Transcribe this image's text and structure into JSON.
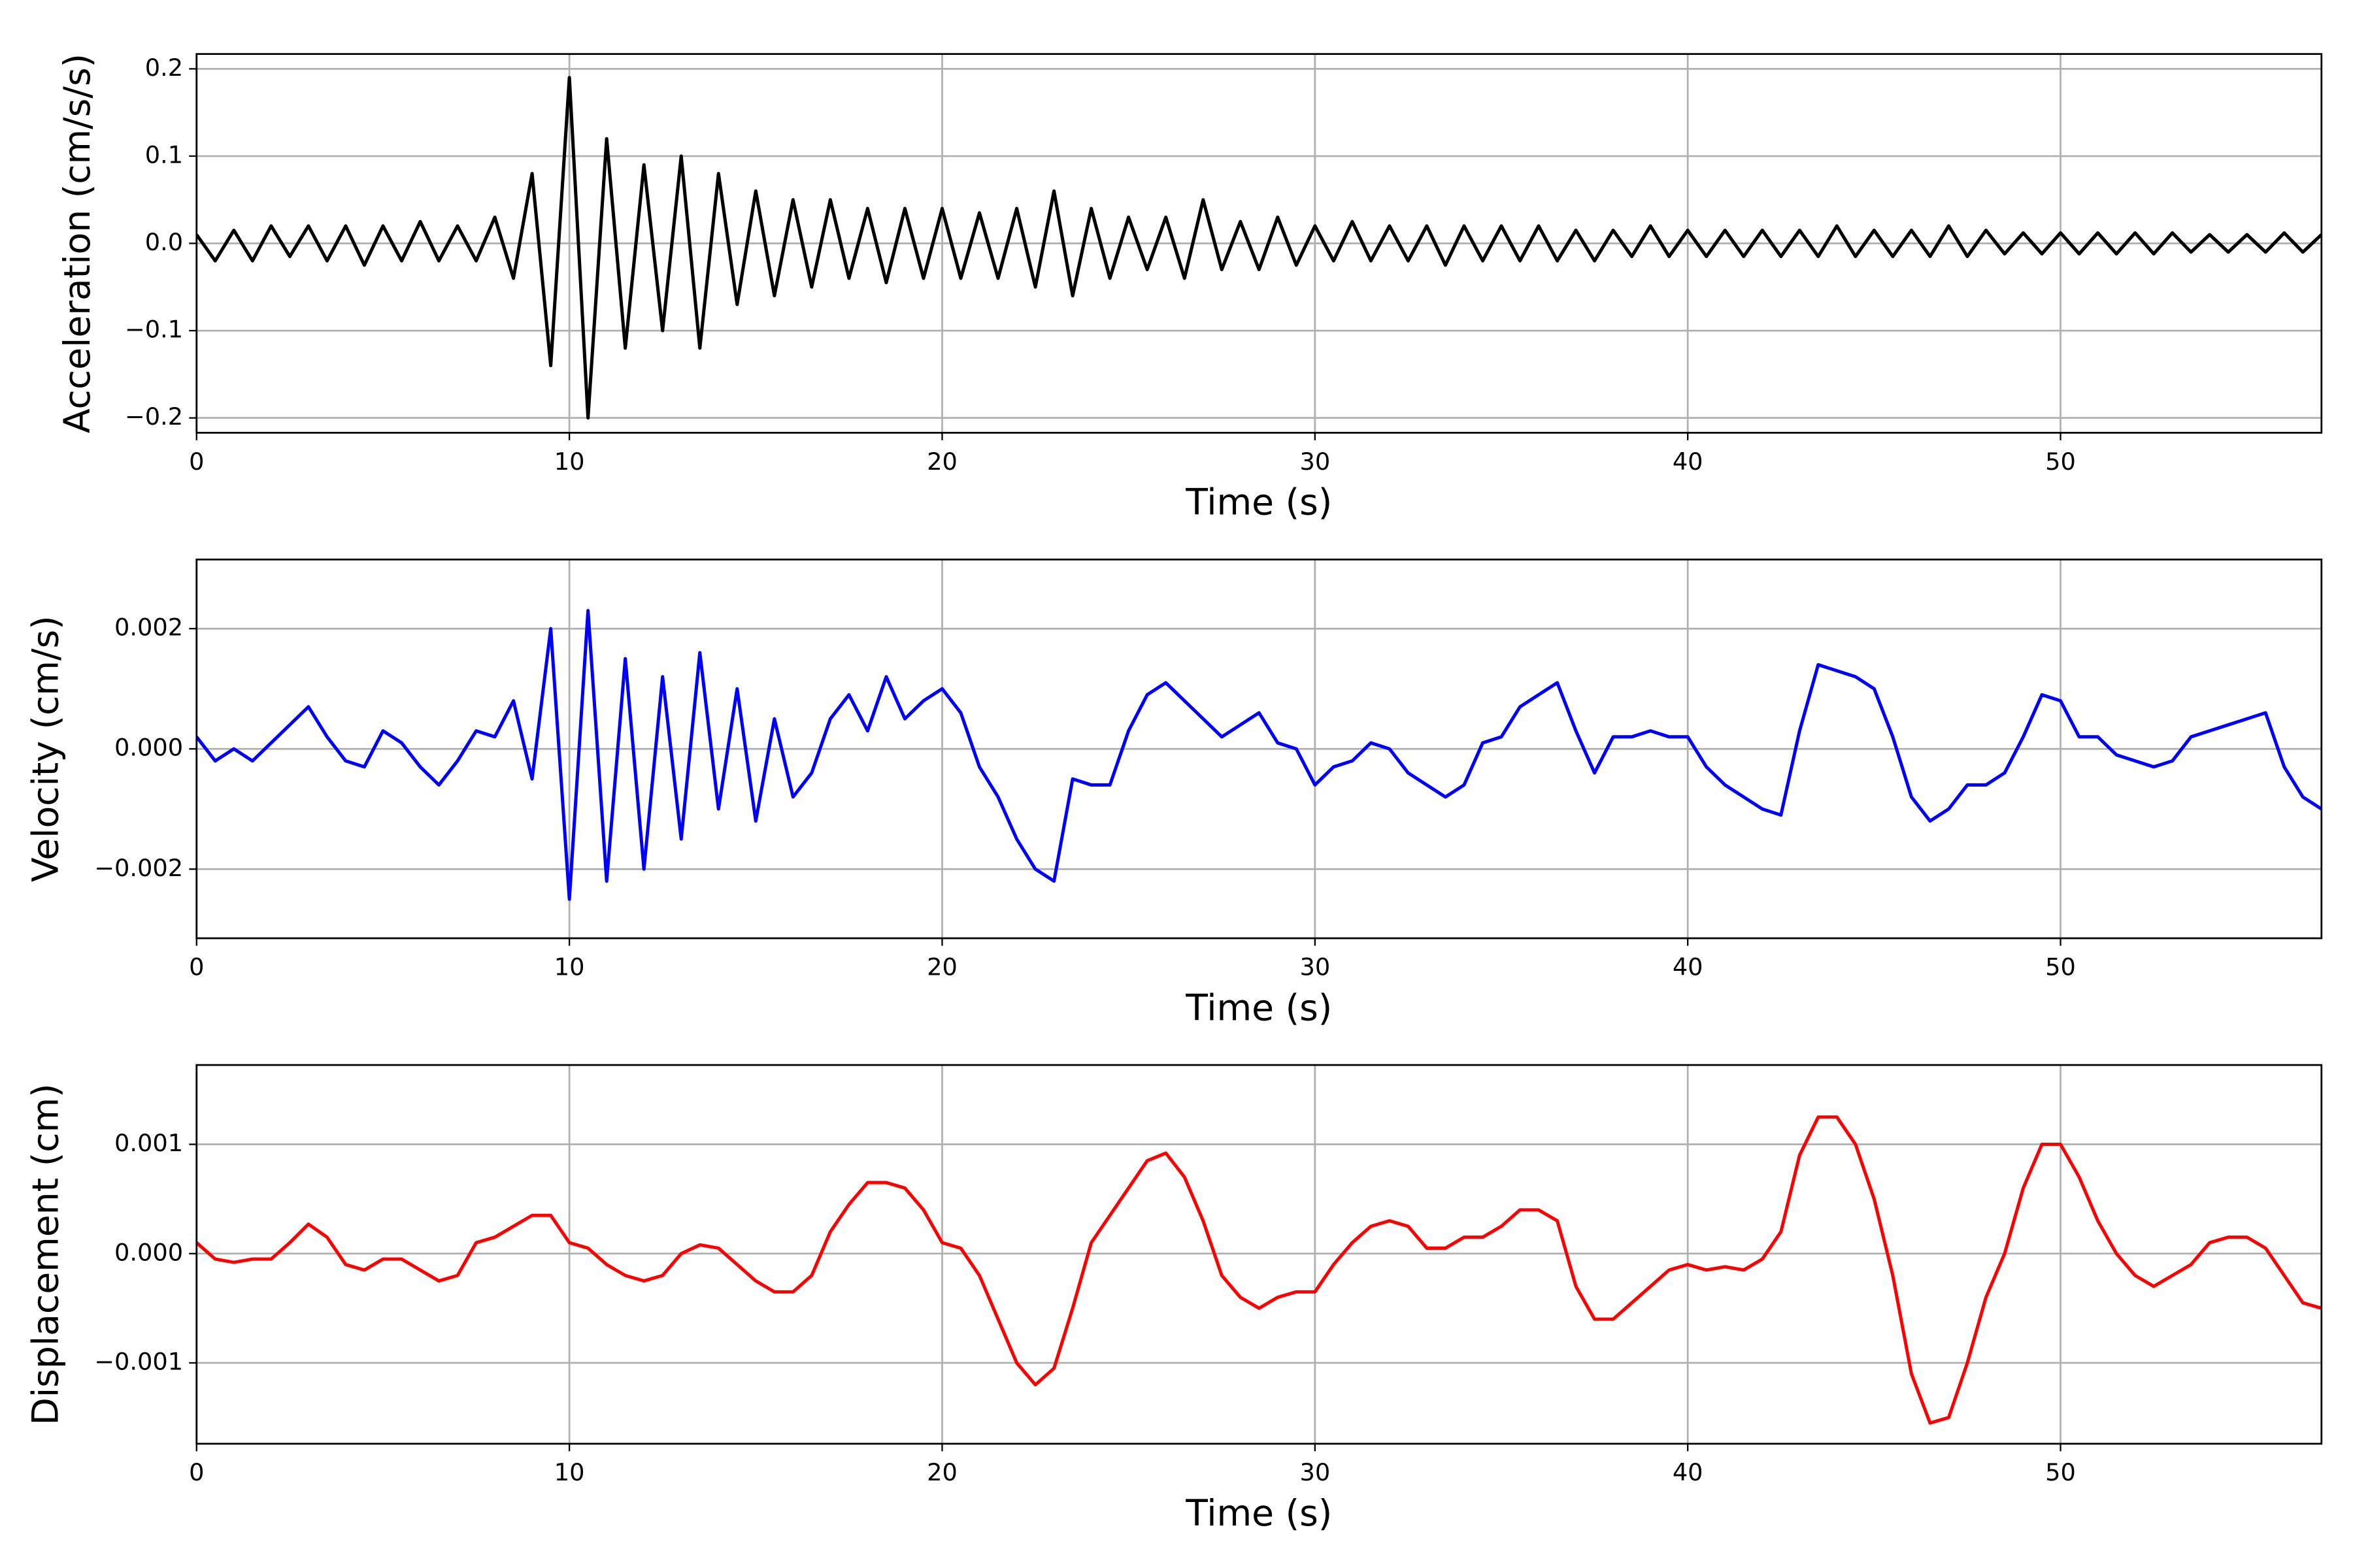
{
  "chart_data": [
    {
      "type": "line",
      "ylabel": "Acceleration (cm/s/s)",
      "xlabel": "Time (s)",
      "color": "#000000",
      "grid": true,
      "xlim": [
        0,
        57
      ],
      "xticks": [
        0,
        10,
        20,
        30,
        40,
        50
      ],
      "ylim": [
        -0.217,
        0.217
      ],
      "yticks": [
        {
          "value": -0.2,
          "label": "−0.2"
        },
        {
          "value": -0.1,
          "label": "−0.1"
        },
        {
          "value": 0,
          "label": "0.0"
        },
        0.1,
        0.2
      ],
      "x": [
        0,
        0.5,
        1,
        1.5,
        2,
        2.5,
        3,
        3.5,
        4,
        4.5,
        5,
        5.5,
        6,
        6.5,
        7,
        7.5,
        8,
        8.5,
        9,
        9.5,
        10,
        10.5,
        11,
        11.5,
        12,
        12.5,
        13,
        13.5,
        14,
        14.5,
        15,
        15.5,
        16,
        16.5,
        17,
        17.5,
        18,
        18.5,
        19,
        19.5,
        20,
        20.5,
        21,
        21.5,
        22,
        22.5,
        23,
        23.5,
        24,
        24.5,
        25,
        25.5,
        26,
        26.5,
        27,
        27.5,
        28,
        28.5,
        29,
        29.5,
        30,
        30.5,
        31,
        31.5,
        32,
        32.5,
        33,
        33.5,
        34,
        34.5,
        35,
        35.5,
        36,
        36.5,
        37,
        37.5,
        38,
        38.5,
        39,
        39.5,
        40,
        40.5,
        41,
        41.5,
        42,
        42.5,
        43,
        43.5,
        44,
        44.5,
        45,
        45.5,
        46,
        46.5,
        47,
        47.5,
        48,
        48.5,
        49,
        49.5,
        50,
        50.5,
        51,
        51.5,
        52,
        52.5,
        53,
        53.5,
        54,
        54.5,
        55,
        55.5,
        56,
        56.5,
        57
      ],
      "values": [
        0.01,
        -0.02,
        0.015,
        -0.02,
        0.02,
        -0.015,
        0.02,
        -0.02,
        0.02,
        -0.025,
        0.02,
        -0.02,
        0.025,
        -0.02,
        0.02,
        -0.02,
        0.03,
        -0.04,
        0.08,
        -0.14,
        0.19,
        -0.2,
        0.12,
        -0.12,
        0.09,
        -0.1,
        0.1,
        -0.12,
        0.08,
        -0.07,
        0.06,
        -0.06,
        0.05,
        -0.05,
        0.05,
        -0.04,
        0.04,
        -0.045,
        0.04,
        -0.04,
        0.04,
        -0.04,
        0.035,
        -0.04,
        0.04,
        -0.05,
        0.06,
        -0.06,
        0.04,
        -0.04,
        0.03,
        -0.03,
        0.03,
        -0.04,
        0.05,
        -0.03,
        0.025,
        -0.03,
        0.03,
        -0.025,
        0.02,
        -0.02,
        0.025,
        -0.02,
        0.02,
        -0.02,
        0.02,
        -0.025,
        0.02,
        -0.02,
        0.02,
        -0.02,
        0.02,
        -0.02,
        0.015,
        -0.02,
        0.015,
        -0.015,
        0.02,
        -0.015,
        0.015,
        -0.015,
        0.015,
        -0.015,
        0.015,
        -0.015,
        0.015,
        -0.015,
        0.02,
        -0.015,
        0.015,
        -0.015,
        0.015,
        -0.015,
        0.02,
        -0.015,
        0.015,
        -0.012,
        0.012,
        -0.012,
        0.012,
        -0.012,
        0.012,
        -0.012,
        0.012,
        -0.012,
        0.012,
        -0.01,
        0.01,
        -0.01,
        0.01,
        -0.01,
        0.012,
        -0.01,
        0.01
      ]
    },
    {
      "type": "line",
      "ylabel": "Velocity (cm/s)",
      "xlabel": "Time (s)",
      "color": "#0000ff",
      "grid": true,
      "xlim": [
        0,
        57
      ],
      "xticks": [
        0,
        10,
        20,
        30,
        40,
        50
      ],
      "ylim": [
        -0.00315,
        0.00315
      ],
      "yticks": [
        {
          "value": -0.002,
          "label": "−0.002"
        },
        {
          "value": 0,
          "label": "0.000"
        },
        0.002
      ],
      "x": [
        0,
        0.5,
        1,
        1.5,
        2,
        2.5,
        3,
        3.5,
        4,
        4.5,
        5,
        5.5,
        6,
        6.5,
        7,
        7.5,
        8,
        8.5,
        9,
        9.5,
        10,
        10.5,
        11,
        11.5,
        12,
        12.5,
        13,
        13.5,
        14,
        14.5,
        15,
        15.5,
        16,
        16.5,
        17,
        17.5,
        18,
        18.5,
        19,
        19.5,
        20,
        20.5,
        21,
        21.5,
        22,
        22.5,
        23,
        23.5,
        24,
        24.5,
        25,
        25.5,
        26,
        26.5,
        27,
        27.5,
        28,
        28.5,
        29,
        29.5,
        30,
        30.5,
        31,
        31.5,
        32,
        32.5,
        33,
        33.5,
        34,
        34.5,
        35,
        35.5,
        36,
        36.5,
        37,
        37.5,
        38,
        38.5,
        39,
        39.5,
        40,
        40.5,
        41,
        41.5,
        42,
        42.5,
        43,
        43.5,
        44,
        44.5,
        45,
        45.5,
        46,
        46.5,
        47,
        47.5,
        48,
        48.5,
        49,
        49.5,
        50,
        50.5,
        51,
        51.5,
        52,
        52.5,
        53,
        53.5,
        54,
        54.5,
        55,
        55.5,
        56,
        56.5,
        57
      ],
      "values": [
        0.0002,
        -0.0002,
        0,
        -0.0002,
        0.0001,
        0.0004,
        0.0007,
        0.0002,
        -0.0002,
        -0.0003,
        0.0003,
        0.0001,
        -0.0003,
        -0.0006,
        -0.0002,
        0.0003,
        0.0002,
        0.0008,
        -0.0005,
        0.002,
        -0.0025,
        0.0023,
        -0.0022,
        0.0015,
        -0.002,
        0.0012,
        -0.0015,
        0.0016,
        -0.001,
        0.001,
        -0.0012,
        0.0005,
        -0.0008,
        -0.0004,
        0.0005,
        0.0009,
        0.0003,
        0.0012,
        0.0005,
        0.0008,
        0.001,
        0.0006,
        -0.0003,
        -0.0008,
        -0.0015,
        -0.002,
        -0.0022,
        -0.0005,
        -0.0006,
        -0.0006,
        0.0003,
        0.0009,
        0.0011,
        0.0008,
        0.0005,
        0.0002,
        0.0004,
        0.0006,
        0.0001,
        0,
        -0.0006,
        -0.0003,
        -0.0002,
        0.0001,
        0,
        -0.0004,
        -0.0006,
        -0.0008,
        -0.0006,
        0.0001,
        0.0002,
        0.0007,
        0.0009,
        0.0011,
        0.0003,
        -0.0004,
        0.0002,
        0.0002,
        0.0003,
        0.0002,
        0.0002,
        -0.0003,
        -0.0006,
        -0.0008,
        -0.001,
        -0.0011,
        0.0003,
        0.0014,
        0.0013,
        0.0012,
        0.001,
        0.0002,
        -0.0008,
        -0.0012,
        -0.001,
        -0.0006,
        -0.0006,
        -0.0004,
        0.0002,
        0.0009,
        0.0008,
        0.0002,
        0.0002,
        -0.0001,
        -0.0002,
        -0.0003,
        -0.0002,
        0.0002,
        0.0003,
        0.0004,
        0.0005,
        0.0006,
        -0.0003,
        -0.0008,
        -0.001
      ]
    },
    {
      "type": "line",
      "ylabel": "Displacement (cm)",
      "xlabel": "Time (s)",
      "color": "#ff0000",
      "grid": true,
      "xlim": [
        0,
        57
      ],
      "xticks": [
        0,
        10,
        20,
        30,
        40,
        50
      ],
      "ylim": [
        -0.00174,
        0.001726
      ],
      "yticks": [
        {
          "value": -0.001,
          "label": "−0.001"
        },
        {
          "value": 0,
          "label": "0.000"
        },
        0.001
      ],
      "x": [
        0,
        0.5,
        1,
        1.5,
        2,
        2.5,
        3,
        3.5,
        4,
        4.5,
        5,
        5.5,
        6,
        6.5,
        7,
        7.5,
        8,
        8.5,
        9,
        9.5,
        10,
        10.5,
        11,
        11.5,
        12,
        12.5,
        13,
        13.5,
        14,
        14.5,
        15,
        15.5,
        16,
        16.5,
        17,
        17.5,
        18,
        18.5,
        19,
        19.5,
        20,
        20.5,
        21,
        21.5,
        22,
        22.5,
        23,
        23.5,
        24,
        24.5,
        25,
        25.5,
        26,
        26.5,
        27,
        27.5,
        28,
        28.5,
        29,
        29.5,
        30,
        30.5,
        31,
        31.5,
        32,
        32.5,
        33,
        33.5,
        34,
        34.5,
        35,
        35.5,
        36,
        36.5,
        37,
        37.5,
        38,
        38.5,
        39,
        39.5,
        40,
        40.5,
        41,
        41.5,
        42,
        42.5,
        43,
        43.5,
        44,
        44.5,
        45,
        45.5,
        46,
        46.5,
        47,
        47.5,
        48,
        48.5,
        49,
        49.5,
        50,
        50.5,
        51,
        51.5,
        52,
        52.5,
        53,
        53.5,
        54,
        54.5,
        55,
        55.5,
        56,
        56.5,
        57
      ],
      "values": [
        0.0001,
        -5e-05,
        -8e-05,
        -5e-05,
        -5e-05,
        0.0001,
        0.00027,
        0.00015,
        -0.0001,
        -0.00015,
        -5e-05,
        -5e-05,
        -0.00015,
        -0.00025,
        -0.0002,
        0.0001,
        0.00015,
        0.00025,
        0.00035,
        0.00035,
        0.0001,
        5e-05,
        -0.0001,
        -0.0002,
        -0.00025,
        -0.0002,
        0,
        8e-05,
        5e-05,
        -0.0001,
        -0.00025,
        -0.00035,
        -0.00035,
        -0.0002,
        0.0002,
        0.00045,
        0.00065,
        0.00065,
        0.0006,
        0.0004,
        0.0001,
        5e-05,
        -0.0002,
        -0.0006,
        -0.001,
        -0.0012,
        -0.00105,
        -0.0005,
        0.0001,
        0.00035,
        0.0006,
        0.00085,
        0.00092,
        0.0007,
        0.0003,
        -0.0002,
        -0.0004,
        -0.0005,
        -0.0004,
        -0.00035,
        -0.00035,
        -0.0001,
        0.0001,
        0.00025,
        0.0003,
        0.00025,
        5e-05,
        5e-05,
        0.00015,
        0.00015,
        0.00025,
        0.0004,
        0.0004,
        0.0003,
        -0.0003,
        -0.0006,
        -0.0006,
        -0.00045,
        -0.0003,
        -0.00015,
        -0.0001,
        -0.00015,
        -0.00012,
        -0.00015,
        -5e-05,
        0.0002,
        0.0009,
        0.00125,
        0.00125,
        0.001,
        0.0005,
        -0.0002,
        -0.0011,
        -0.00155,
        -0.0015,
        -0.001,
        -0.0004,
        0,
        0.0006,
        0.001,
        0.001,
        0.0007,
        0.0003,
        0,
        -0.0002,
        -0.0003,
        -0.0002,
        -0.0001,
        0.0001,
        0.00015,
        0.00015,
        5e-05,
        -0.0002,
        -0.00045,
        -0.0005
      ]
    }
  ]
}
